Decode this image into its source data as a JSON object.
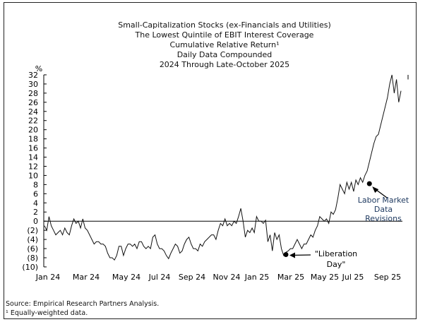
{
  "chart_data": {
    "type": "line",
    "title": [
      "Small-Capitalization Stocks (ex-Financials and Utilities)",
      "The Lowest Quintile of EBIT Interest Coverage",
      "Cumulative Relative Return¹",
      "Daily Data Compounded",
      "2024 Through Late-October 2025"
    ],
    "ylabel": "%",
    "xlabel": "",
    "ylim": [
      -10,
      32
    ],
    "yticks": [
      32,
      30,
      28,
      26,
      24,
      22,
      20,
      18,
      16,
      14,
      12,
      10,
      8,
      6,
      4,
      2,
      0,
      -2,
      -4,
      -6,
      -8,
      -10
    ],
    "ytick_labels": [
      "32",
      "30",
      "28",
      "26",
      "24",
      "22",
      "20",
      "18",
      "16",
      "14",
      "12",
      "10",
      "8",
      "6",
      "4",
      "2",
      "0",
      "(2)",
      "(4)",
      "(6)",
      "(8)",
      "(10)"
    ],
    "xtick_labels": [
      "Jan 24",
      "Mar 24",
      "May 24",
      "Jul 24",
      "Sep 24",
      "Nov 24",
      "Jan 25",
      "Mar 25",
      "May 25",
      "Jul 25",
      "Sep 25"
    ],
    "grid": false,
    "reference_line": 0,
    "series": [
      {
        "name": "Cumulative Relative Return",
        "values": [
          -1,
          -2,
          1,
          -1,
          -2,
          -3,
          -2.5,
          -2,
          -3,
          -1.5,
          -2.5,
          -3,
          -1,
          0.5,
          -0.5,
          0,
          -1.5,
          0.5,
          -1.5,
          -2,
          -3,
          -4,
          -5,
          -4.5,
          -4.5,
          -5,
          -5,
          -5.5,
          -7,
          -8,
          -8,
          -8.5,
          -7.5,
          -5.5,
          -5.5,
          -7.5,
          -6,
          -5,
          -5,
          -5.5,
          -5,
          -6,
          -4.5,
          -4.5,
          -5.5,
          -6,
          -5.5,
          -6,
          -3.5,
          -3,
          -5,
          -6,
          -6,
          -6.5,
          -7.5,
          -8.2,
          -7,
          -6,
          -5,
          -5.5,
          -7,
          -6.5,
          -5,
          -4,
          -3.5,
          -5,
          -6,
          -6,
          -6.5,
          -5,
          -5.5,
          -4.5,
          -4,
          -3.5,
          -3,
          -3,
          -4,
          -2,
          -0.5,
          -1,
          0.5,
          -1,
          -0.5,
          -1,
          0,
          -0.5,
          1,
          2.8,
          0,
          -3.5,
          -2,
          -2.5,
          -1.5,
          -2.5,
          1,
          0,
          0,
          -0.5,
          0.2,
          -4.5,
          -3,
          -6.5,
          -2.5,
          -4,
          -3,
          -6,
          -7.5,
          -6.8,
          -6.5,
          -6,
          -6,
          -5,
          -4,
          -5,
          -6,
          -5,
          -5,
          -4,
          -3,
          -3.5,
          -2,
          -1,
          1,
          0.5,
          0,
          0.5,
          -0.5,
          2,
          1.5,
          2.5,
          5,
          8,
          7,
          6,
          8.5,
          7,
          8.5,
          6.5,
          9,
          8,
          9.5,
          8.5,
          10,
          11,
          13,
          15,
          17,
          18.5,
          19,
          21,
          23,
          25,
          27,
          30,
          32,
          28,
          31,
          26,
          28.5
        ]
      }
    ],
    "annotations": [
      {
        "text": "\"Liberation Day\"",
        "lines": [
          "\"Liberation",
          "Day\""
        ],
        "index": 107,
        "value": -7.3
      },
      {
        "text": "Labor Market Data Revisions",
        "lines": [
          "Labor Market",
          "Data",
          "Revisions"
        ],
        "index": 144,
        "value": 8.2
      }
    ],
    "period": "2024 Through Late-October 2025"
  },
  "footer": {
    "source": "Source: Empirical Research Partners Analysis.",
    "note": "¹ Equally-weighted data."
  }
}
